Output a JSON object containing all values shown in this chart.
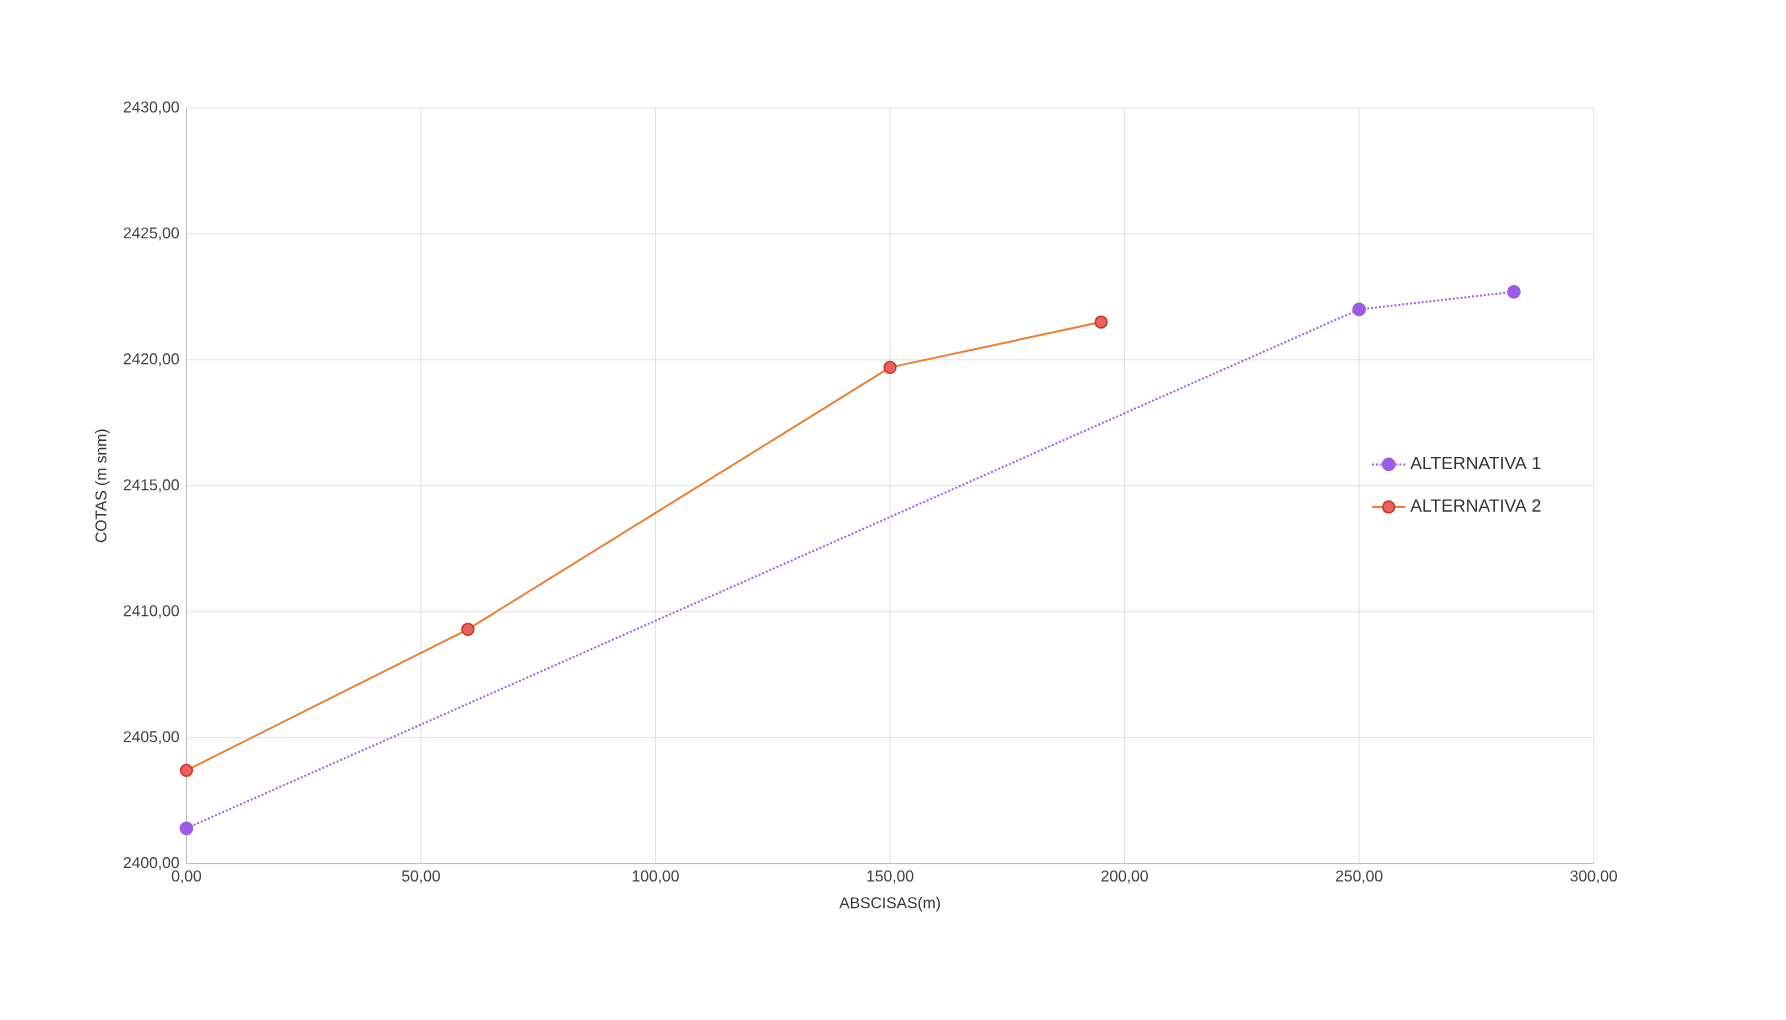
{
  "chart_data": {
    "type": "line",
    "xlabel": "ABSCISAS(m)",
    "ylabel": "COTAS (m snm)",
    "xlim": [
      0,
      300
    ],
    "ylim": [
      2400,
      2430
    ],
    "xticks": [
      {
        "value": 0,
        "label": "0,00"
      },
      {
        "value": 50,
        "label": "50,00"
      },
      {
        "value": 100,
        "label": "100,00"
      },
      {
        "value": 150,
        "label": "150,00"
      },
      {
        "value": 200,
        "label": "200,00"
      },
      {
        "value": 250,
        "label": "250,00"
      },
      {
        "value": 300,
        "label": "300,00"
      }
    ],
    "yticks": [
      {
        "value": 2400,
        "label": "2400,00"
      },
      {
        "value": 2405,
        "label": "2405,00"
      },
      {
        "value": 2410,
        "label": "2410,00"
      },
      {
        "value": 2415,
        "label": "2415,00"
      },
      {
        "value": 2420,
        "label": "2420,00"
      },
      {
        "value": 2425,
        "label": "2425,00"
      },
      {
        "value": 2430,
        "label": "2430,00"
      }
    ],
    "grid": true,
    "legend": "right",
    "marker": "circle",
    "series": [
      {
        "name": "ALTERNATIVA 1",
        "color": "#9d5ce6",
        "line_style": "dotted",
        "x": [
          0,
          250,
          283
        ],
        "values": [
          2401.4,
          2422.0,
          2422.7
        ]
      },
      {
        "name": "ALTERNATIVA 2",
        "color": "#ed7d31",
        "line_style": "solid",
        "x": [
          0,
          60,
          150,
          195
        ],
        "values": [
          2403.7,
          2409.3,
          2419.7,
          2421.5
        ]
      }
    ]
  }
}
